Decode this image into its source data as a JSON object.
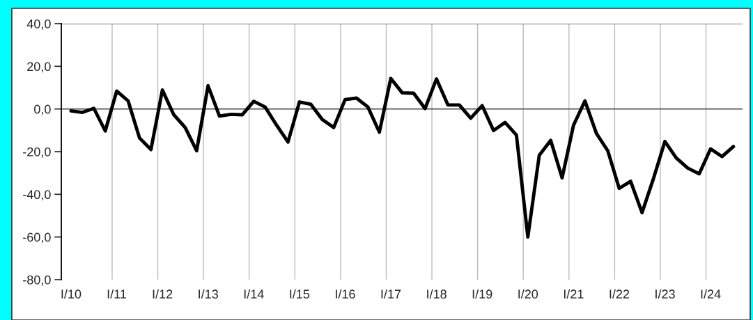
{
  "chart_data": {
    "type": "line",
    "categories": [
      "I/10",
      null,
      null,
      null,
      "I/11",
      null,
      null,
      null,
      "I/12",
      null,
      null,
      null,
      "I/13",
      null,
      null,
      null,
      "I/14",
      null,
      null,
      null,
      "I/15",
      null,
      null,
      null,
      "I/16",
      null,
      null,
      null,
      "I/17",
      null,
      null,
      null,
      "I/18",
      null,
      null,
      null,
      "I/19",
      null,
      null,
      null,
      "I/20",
      null,
      null,
      null,
      "I/21",
      null,
      null,
      null,
      "I/22",
      null,
      null,
      null,
      "I/23",
      null,
      null,
      null,
      "I/24",
      null,
      null
    ],
    "series": [
      {
        "color": "#000000",
        "values": [
          -0.9,
          -1.6,
          0.3,
          -10.3,
          8.4,
          3.8,
          -13.6,
          -19.0,
          8.9,
          -2.7,
          -8.7,
          -19.6,
          10.9,
          -3.3,
          -2.5,
          -2.7,
          3.6,
          0.9,
          -7.6,
          -15.5,
          3.3,
          2.2,
          -4.9,
          -8.7,
          4.4,
          5.1,
          0.9,
          -10.9,
          14.3,
          7.6,
          7.4,
          0.2,
          14.1,
          1.9,
          1.9,
          -4.3,
          1.6,
          -10.1,
          -6.3,
          -12.2,
          -60.0,
          -21.7,
          -14.7,
          -32.3,
          -7.6,
          3.8,
          -11.4,
          -19.6,
          -37.2,
          -33.9,
          -48.6,
          -32.6,
          -15.2,
          -23.0,
          -27.7,
          -30.4,
          -18.7,
          -22.3,
          -17.6
        ]
      }
    ],
    "ylim": [
      -80,
      40
    ],
    "yticks": [
      {
        "value": -80,
        "label": "-80,0"
      },
      {
        "value": -60,
        "label": "-60,0"
      },
      {
        "value": -40,
        "label": "-40,0"
      },
      {
        "value": -20,
        "label": "-20,0"
      },
      {
        "value": 0,
        "label": "0,0"
      },
      {
        "value": 20,
        "label": "20,0"
      },
      {
        "value": 40,
        "label": "40,0"
      }
    ],
    "ref_lines": [
      {
        "axis": "y",
        "value": 0,
        "color": "#555555"
      }
    ],
    "grid": "x",
    "line_style": "solid",
    "marker": "none"
  }
}
